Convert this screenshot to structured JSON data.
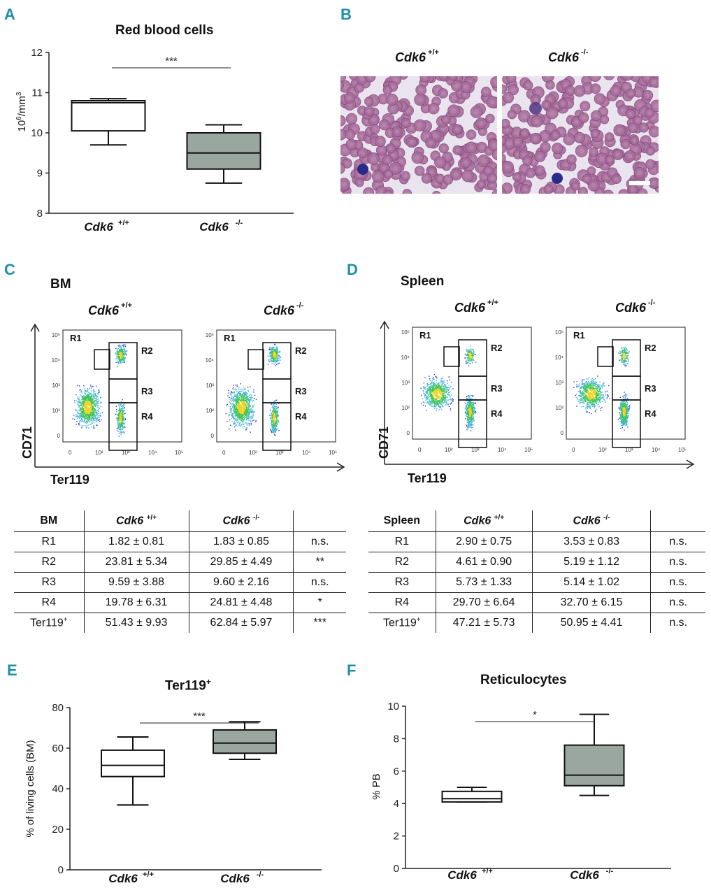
{
  "panels": {
    "A": {
      "letter": "A",
      "title": "Red blood cells",
      "ylabel_html": "10<sup>6</sup>/mm<sup>3</sup>",
      "significance": "***"
    },
    "B": {
      "letter": "B",
      "left_label": "Cdk6",
      "left_sup": "+/+",
      "right_label": "Cdk6",
      "right_sup": "-/-"
    },
    "C": {
      "letter": "C",
      "tissue": "BM",
      "geno_wt": "Cdk6",
      "geno_wt_sup": "+/+",
      "geno_ko": "Cdk6",
      "geno_ko_sup": "-/-",
      "y_axis": "CD71",
      "x_axis": "Ter119",
      "gates": [
        "R1",
        "R2",
        "R3",
        "R4"
      ]
    },
    "D": {
      "letter": "D",
      "tissue": "Spleen",
      "geno_wt": "Cdk6",
      "geno_wt_sup": "+/+",
      "geno_ko": "Cdk6",
      "geno_ko_sup": "-/-",
      "y_axis": "CD71",
      "x_axis": "Ter119",
      "gates": [
        "R1",
        "R2",
        "R3",
        "R4"
      ]
    },
    "E": {
      "letter": "E",
      "title": "Ter119",
      "title_sup": "+",
      "ylabel": "% of living cells (BM)",
      "significance": "***"
    },
    "F": {
      "letter": "F",
      "title": "Reticulocytes",
      "ylabel": "% PB",
      "significance": "*"
    }
  },
  "flow_axis_ticks": {
    "x": [
      "0",
      "10²",
      "10³",
      "10⁴",
      "10⁵"
    ],
    "y": [
      "10⁵",
      "10⁴",
      "10³",
      "10²",
      "0"
    ]
  },
  "tables": {
    "bm": {
      "header": [
        "BM",
        "Cdk6",
        "Cdk6",
        ""
      ],
      "header_sup": [
        "",
        "+/+",
        "-/-",
        ""
      ],
      "rows": [
        [
          "R1",
          "1.82 ± 0.81",
          "1.83 ± 0.85",
          "n.s."
        ],
        [
          "R2",
          "23.81 ± 5.34",
          "29.85 ± 4.49",
          "**"
        ],
        [
          "R3",
          "9.59 ± 3.88",
          "9.60 ± 2.16",
          "n.s."
        ],
        [
          "R4",
          "19.78 ± 6.31",
          "24.81 ± 4.48",
          "*"
        ],
        [
          "Ter119",
          "51.43 ± 9.93",
          "62.84 ± 5.97",
          "***"
        ]
      ]
    },
    "spleen": {
      "header": [
        "Spleen",
        "Cdk6",
        "Cdk6",
        ""
      ],
      "header_sup": [
        "",
        "+/+",
        "-/-",
        ""
      ],
      "rows": [
        [
          "R1",
          "2.90 ± 0.75",
          "3.53 ± 0.83",
          "n.s."
        ],
        [
          "R2",
          "4.61 ± 0.90",
          "5.19 ± 1.12",
          "n.s."
        ],
        [
          "R3",
          "5.73 ± 1.33",
          "5.14 ± 1.02",
          "n.s."
        ],
        [
          "R4",
          "29.70 ± 6.64",
          "32.70 ± 6.15",
          "n.s."
        ],
        [
          "Ter119",
          "47.21 ± 5.73",
          "50.95 ± 4.41",
          "n.s."
        ]
      ],
      "last_row_sup": "+"
    }
  },
  "chart_data": [
    {
      "id": "A",
      "type": "boxplot",
      "title": "Red blood cells",
      "ylabel": "10^6/mm^3",
      "ylim": [
        8,
        12
      ],
      "yticks": [
        8,
        9,
        10,
        11,
        12
      ],
      "categories": [
        "Cdk6 +/+",
        "Cdk6 -/-"
      ],
      "boxes": [
        {
          "name": "Cdk6 +/+",
          "min": 9.7,
          "q1": 10.05,
          "median": 10.75,
          "q3": 10.8,
          "max": 10.85,
          "fill": "#ffffff"
        },
        {
          "name": "Cdk6 -/-",
          "min": 8.75,
          "q1": 9.1,
          "median": 9.5,
          "q3": 10.0,
          "max": 10.2,
          "fill": "#9aa6a0"
        }
      ],
      "significance": "***"
    },
    {
      "id": "E",
      "type": "boxplot",
      "title": "Ter119+",
      "ylabel": "% of living cells (BM)",
      "ylim": [
        0,
        80
      ],
      "yticks": [
        0,
        20,
        40,
        60,
        80
      ],
      "categories": [
        "Cdk6 +/+",
        "Cdk6 -/-"
      ],
      "boxes": [
        {
          "name": "Cdk6 +/+",
          "min": 32,
          "q1": 46,
          "median": 51.5,
          "q3": 59,
          "max": 65.5,
          "fill": "#ffffff"
        },
        {
          "name": "Cdk6 -/-",
          "min": 54.5,
          "q1": 57.5,
          "median": 62.5,
          "q3": 69,
          "max": 73,
          "fill": "#9aa6a0"
        }
      ],
      "significance": "***"
    },
    {
      "id": "F",
      "type": "boxplot",
      "title": "Reticulocytes",
      "ylabel": "% PB",
      "ylim": [
        0,
        10
      ],
      "yticks": [
        0,
        2,
        4,
        6,
        8,
        10
      ],
      "categories": [
        "Cdk6 +/+",
        "Cdk6 -/-"
      ],
      "boxes": [
        {
          "name": "Cdk6 +/+",
          "min": 4.1,
          "q1": 4.1,
          "median": 4.3,
          "q3": 4.75,
          "max": 5.0,
          "fill": "#ffffff"
        },
        {
          "name": "Cdk6 -/-",
          "min": 4.5,
          "q1": 5.1,
          "median": 5.75,
          "q3": 7.6,
          "max": 9.5,
          "fill": "#9aa6a0"
        }
      ],
      "significance": "*"
    }
  ]
}
